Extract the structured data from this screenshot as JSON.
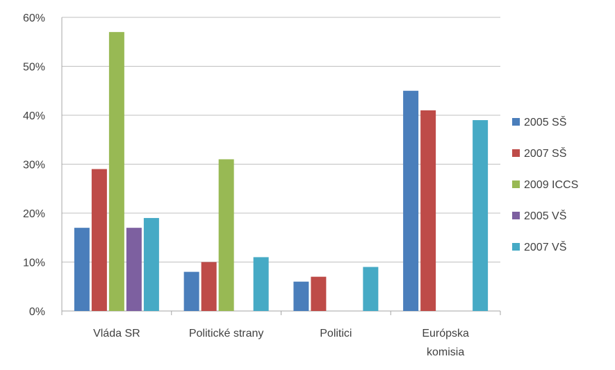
{
  "chart_data": {
    "type": "bar",
    "categories": [
      "Vláda SR",
      "Politické strany",
      "Politici",
      "Európska komisia"
    ],
    "category_lines": [
      [
        "Vláda SR"
      ],
      [
        "Politické strany"
      ],
      [
        "Politici"
      ],
      [
        "Európska",
        "komisia"
      ]
    ],
    "series": [
      {
        "name": "2005 SŠ",
        "color": "#4a7ebb",
        "values": [
          17,
          8,
          6,
          45
        ]
      },
      {
        "name": "2007 SŠ",
        "color": "#be4b48",
        "values": [
          29,
          10,
          7,
          41
        ]
      },
      {
        "name": "2009 ICCS",
        "color": "#98b954",
        "values": [
          57,
          31,
          null,
          null
        ]
      },
      {
        "name": "2005 VŠ",
        "color": "#7d60a0",
        "values": [
          17,
          null,
          null,
          null
        ]
      },
      {
        "name": "2007 VŠ",
        "color": "#46aac5",
        "values": [
          19,
          11,
          9,
          39
        ]
      }
    ],
    "ylim": [
      0,
      60
    ],
    "yticks": [
      0,
      10,
      20,
      30,
      40,
      50,
      60
    ],
    "ytick_labels": [
      "0%",
      "10%",
      "20%",
      "30%",
      "40%",
      "50%",
      "60%"
    ],
    "grid": true,
    "legend_position": "right",
    "title": "",
    "xlabel": "",
    "ylabel": ""
  }
}
